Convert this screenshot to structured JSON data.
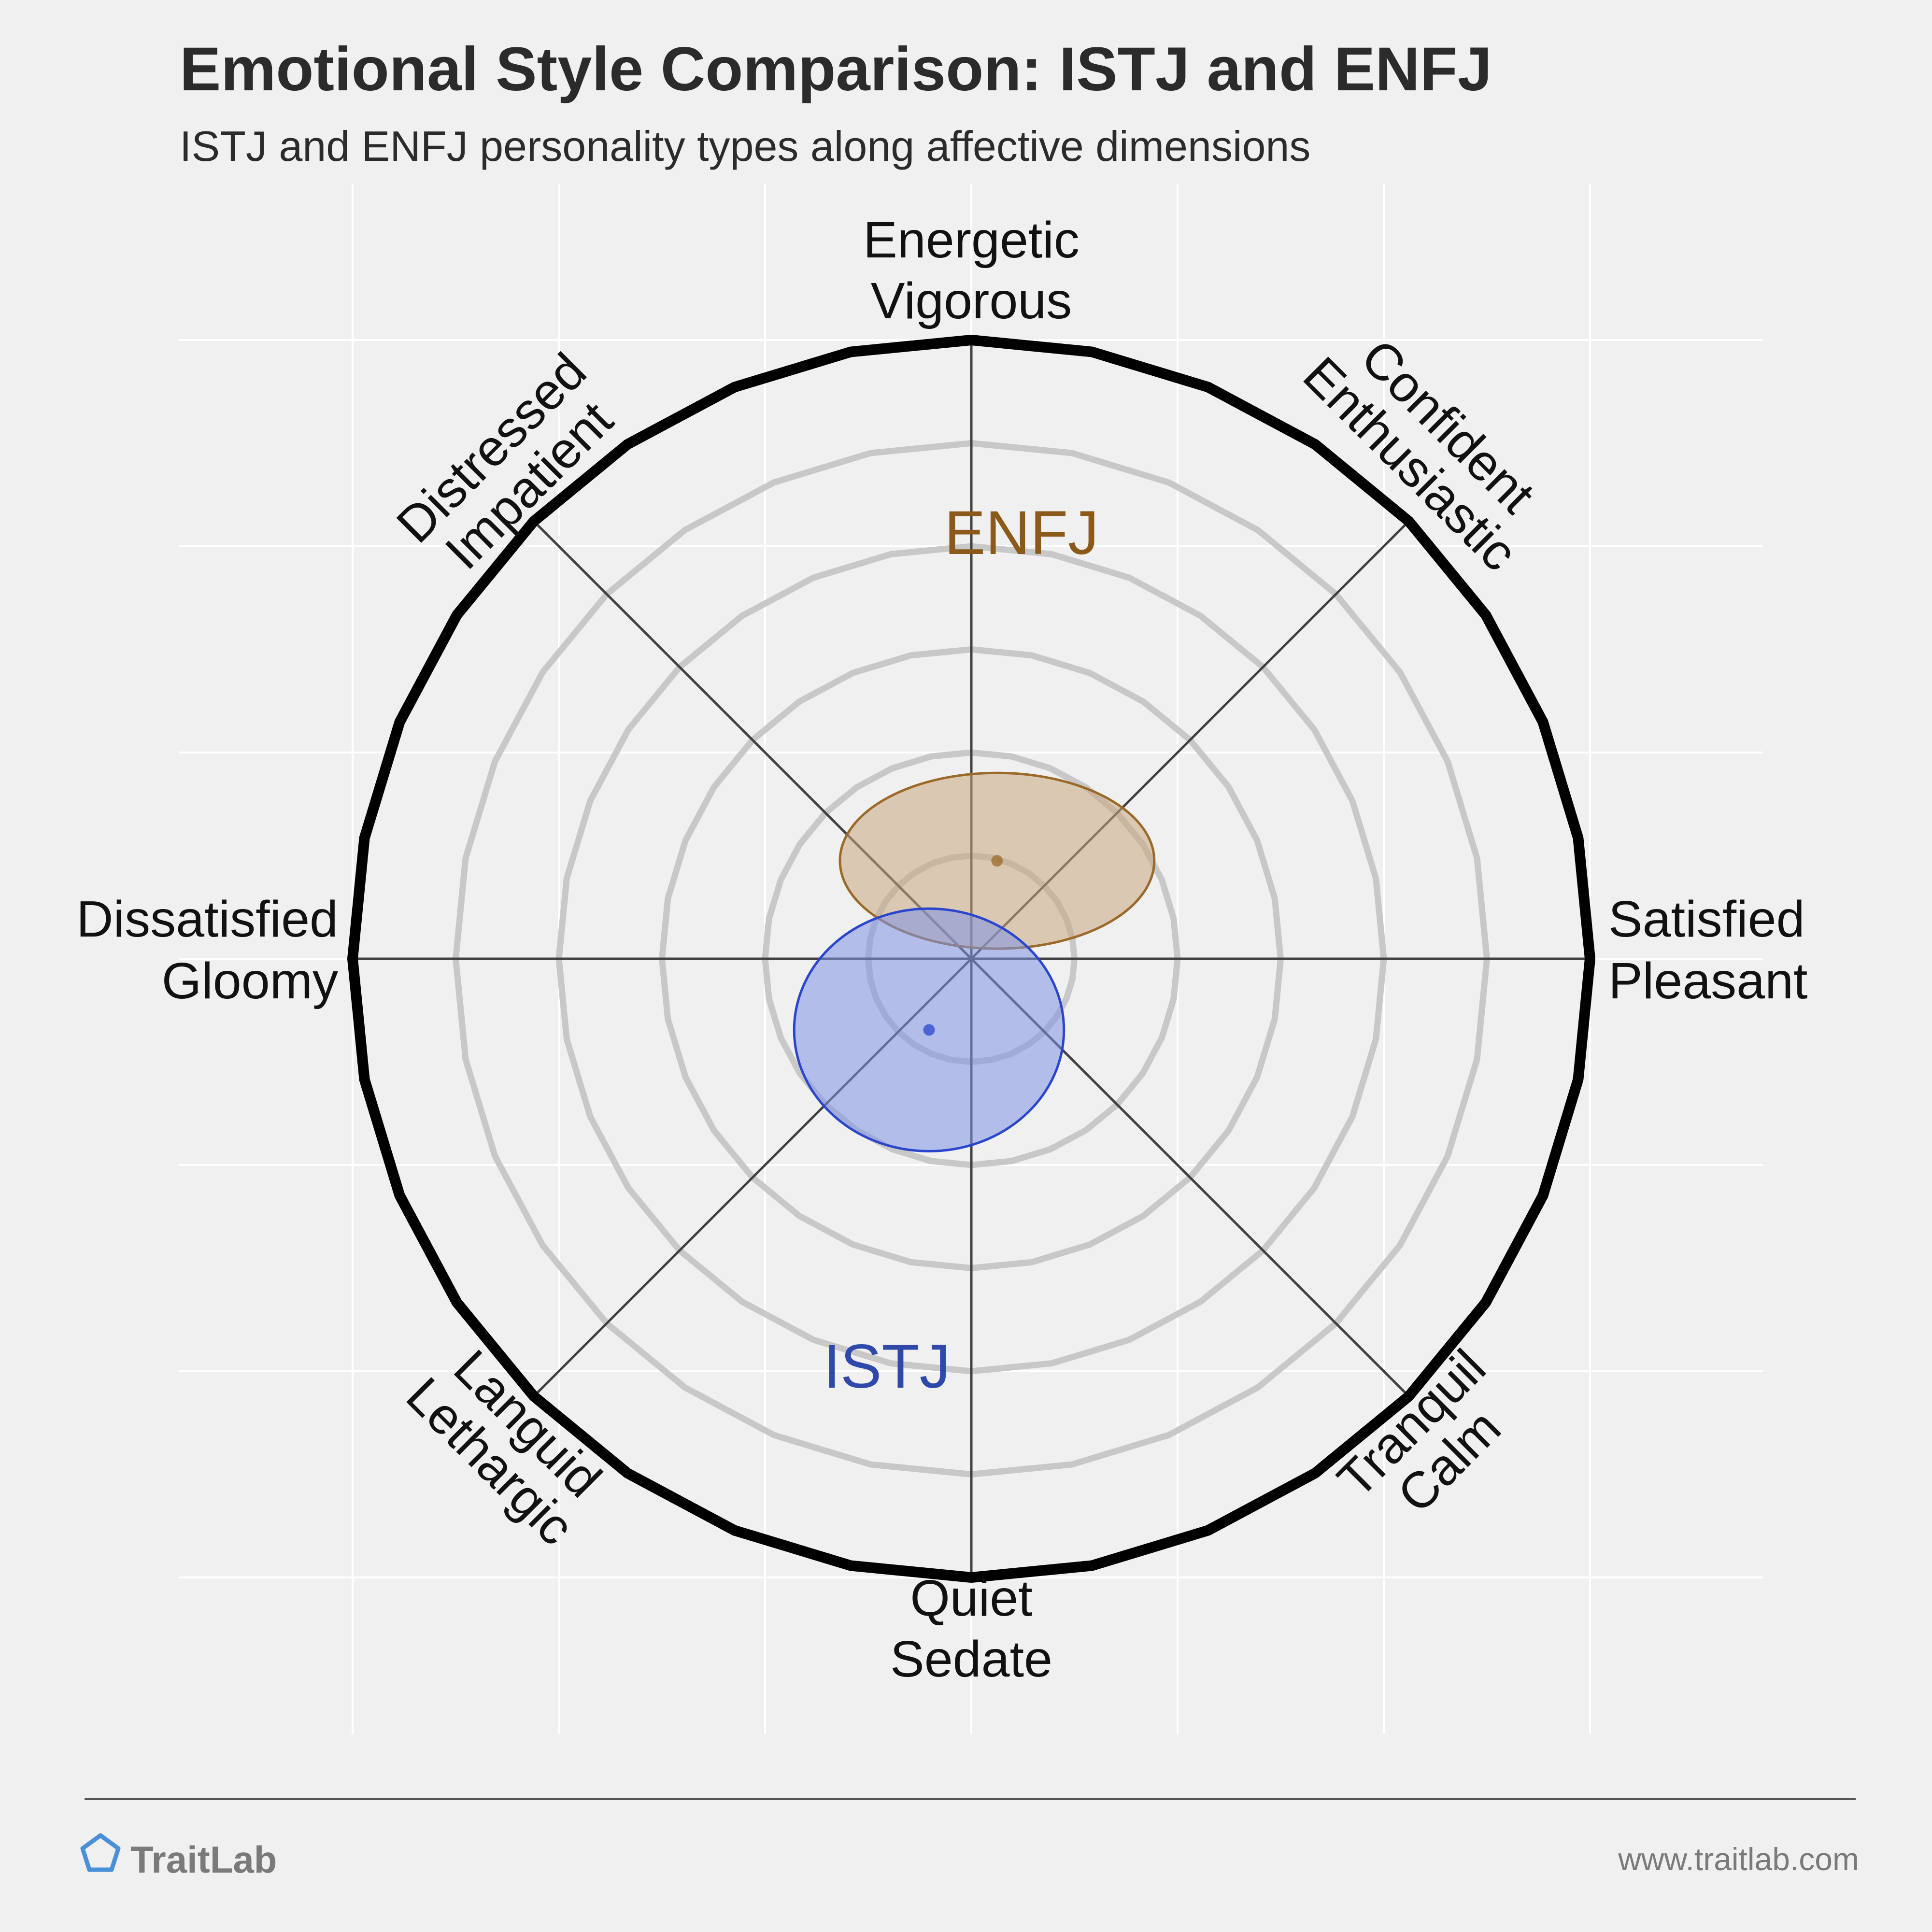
{
  "chart_data": {
    "type": "scatter",
    "title": "Emotional Style Comparison: ISTJ and ENFJ",
    "subtitle": "ISTJ and ENFJ personality types along affective dimensions",
    "xlim": [
      -6,
      6
    ],
    "ylim": [
      -6,
      6
    ],
    "grid": true,
    "rings": [
      1,
      2,
      3,
      4,
      5
    ],
    "axis_labels": [
      {
        "id": "n",
        "lines": [
          "Energetic",
          "Vigorous"
        ]
      },
      {
        "id": "ne",
        "lines": [
          "Confident",
          "Enthusiastic"
        ]
      },
      {
        "id": "e",
        "lines": [
          "Satisfied",
          "Pleasant"
        ]
      },
      {
        "id": "se",
        "lines": [
          "Tranquil",
          "Calm"
        ]
      },
      {
        "id": "s",
        "lines": [
          "Quiet",
          "Sedate"
        ]
      },
      {
        "id": "sw",
        "lines": [
          "Languid",
          "Lethargic"
        ]
      },
      {
        "id": "w",
        "lines": [
          "Dissatisfied",
          "Gloomy"
        ]
      },
      {
        "id": "nw",
        "lines": [
          "Distressed",
          "Impatient"
        ]
      }
    ],
    "series": [
      {
        "name": "ENFJ",
        "x": 0.25,
        "y": 0.95,
        "spread_x": 1.27,
        "spread_y": 0.71,
        "color": "#8b5a1b",
        "fill": "#c9a77f",
        "edge": "#9b6a2a"
      },
      {
        "name": "ISTJ",
        "x": -0.41,
        "y": -0.69,
        "spread_x": 1.09,
        "spread_y": 0.98,
        "color": "#2f49ab",
        "fill": "#8093e6",
        "edge": "#2a46cc"
      }
    ]
  },
  "footer": {
    "brand": "TraitLab",
    "url": "www.traitlab.com"
  },
  "colors": {
    "background": "#f0f0f0",
    "grid": "#ffffff",
    "ring": "#c8c8c8",
    "outer_ring": "#000000",
    "axis_line": "#404040",
    "brand_icon": "#4a90d9"
  }
}
